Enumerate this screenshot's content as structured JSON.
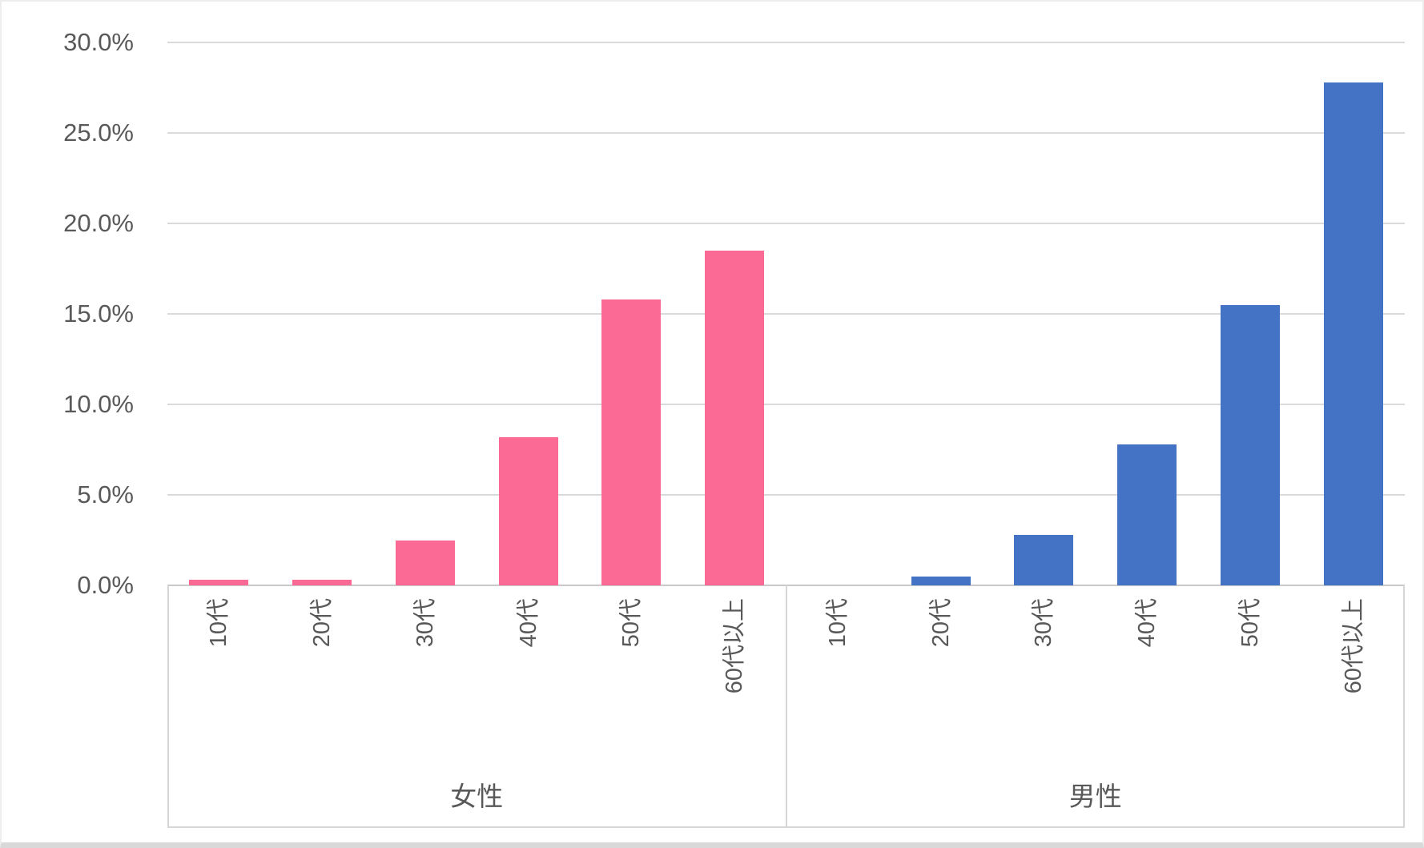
{
  "chart_data": {
    "type": "bar",
    "title": "",
    "xlabel": "",
    "ylabel": "",
    "y_axis": {
      "tick_labels": [
        "30.0%",
        "25.0%",
        "20.0%",
        "15.0%",
        "10.0%",
        "5.0%",
        "0.0%"
      ],
      "min": 0,
      "max": 30,
      "step": 5,
      "unit": "%"
    },
    "categories": [
      "10代",
      "20代",
      "30代",
      "40代",
      "50代",
      "60代以上"
    ],
    "series": [
      {
        "name": "女性",
        "color": "#fb6a95",
        "values": [
          0.3,
          0.3,
          2.5,
          8.2,
          15.8,
          18.5
        ]
      },
      {
        "name": "男性",
        "color": "#4472c4",
        "values": [
          0.0,
          0.5,
          2.8,
          7.8,
          15.5,
          27.8
        ]
      }
    ],
    "grid": true,
    "legend": "none",
    "colors": {
      "axis_text": "#595959",
      "gridline": "#dadada",
      "band_line": "#d6d6d6"
    }
  }
}
